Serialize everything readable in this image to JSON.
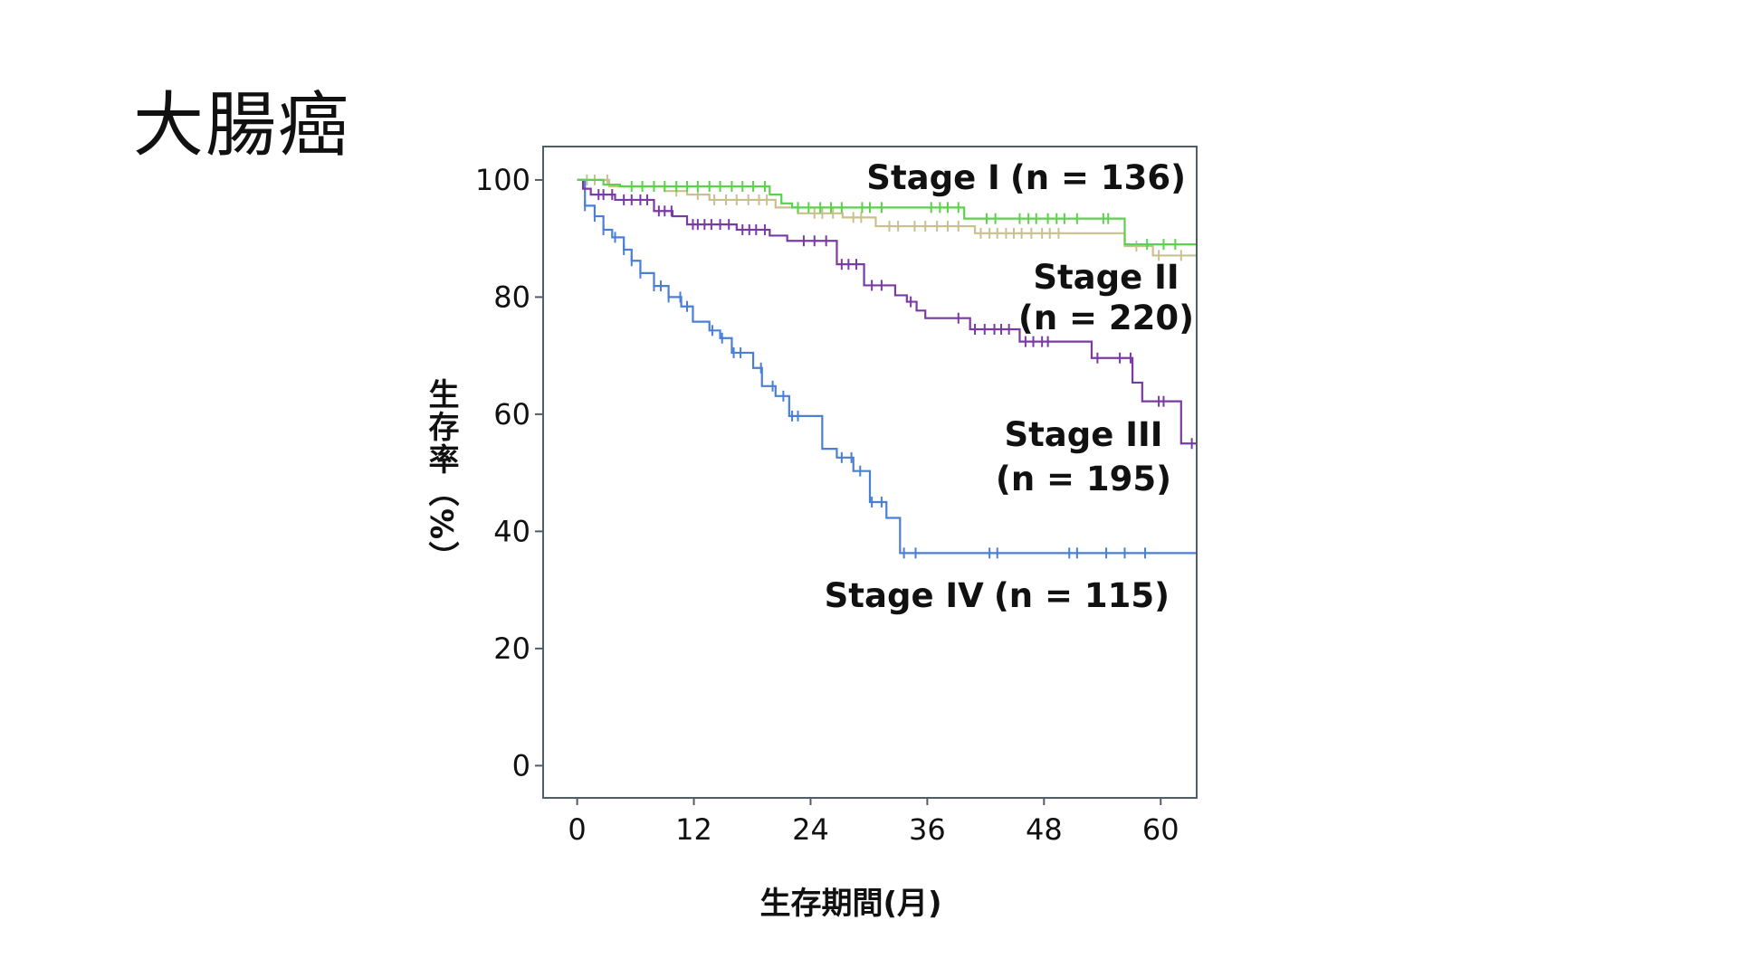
{
  "title": "大腸癌",
  "chart_data": {
    "type": "line",
    "step": true,
    "xlabel": "生存期間(月)",
    "ylabel": "生存率（%）",
    "xlim": [
      -3.5,
      63.7
    ],
    "ylim": [
      -5.5,
      105.7
    ],
    "xticks": [
      0,
      12,
      24,
      36,
      48,
      60
    ],
    "yticks": [
      0,
      20,
      40,
      60,
      80,
      100
    ],
    "grid": false,
    "series": [
      {
        "name": "Stage I",
        "n_label": "(n = 136)",
        "color": "#5cd14b",
        "steps": [
          [
            0,
            100
          ],
          [
            2.7,
            99.2
          ],
          [
            4.4,
            98.9
          ],
          [
            19.8,
            97.5
          ],
          [
            21.0,
            96.0
          ],
          [
            22.1,
            95.3
          ],
          [
            39.8,
            93.4
          ],
          [
            56.3,
            89.0
          ]
        ],
        "censored": [
          5.6,
          6.7,
          7.9,
          9.0,
          10.2,
          11.3,
          12.4,
          13.6,
          14.7,
          15.9,
          17.0,
          18.1,
          19.3,
          22.7,
          23.8,
          25.0,
          26.1,
          27.2,
          29.3,
          30.1,
          31.3,
          36.4,
          37.3,
          38.1,
          39.2,
          42.1,
          43.0,
          45.5,
          46.4,
          47.2,
          48.4,
          49.3,
          50.1,
          51.4,
          54.1,
          54.6,
          58.6,
          60.3,
          61.5
        ]
      },
      {
        "name": "Stage II",
        "n_label": "(n = 220)",
        "color": "#c8c18d",
        "steps": [
          [
            0,
            100
          ],
          [
            3.3,
            98.9
          ],
          [
            9.0,
            98.1
          ],
          [
            11.3,
            97.5
          ],
          [
            13.6,
            96.6
          ],
          [
            20.4,
            95.3
          ],
          [
            22.7,
            94.3
          ],
          [
            27.3,
            93.6
          ],
          [
            30.7,
            92.1
          ],
          [
            40.9,
            90.9
          ],
          [
            56.3,
            88.7
          ],
          [
            59.2,
            87.1
          ]
        ],
        "censored": [
          1.0,
          1.8,
          3.1,
          10.2,
          12.4,
          14.1,
          15.3,
          16.4,
          17.6,
          18.7,
          19.5,
          24.4,
          25.2,
          26.3,
          28.4,
          29.2,
          32.1,
          33.0,
          34.7,
          35.8,
          37.0,
          38.1,
          39.2,
          41.5,
          42.4,
          43.2,
          44.1,
          44.9,
          45.7,
          46.7,
          47.8,
          48.6,
          49.5,
          57.5,
          59.8,
          62.1
        ]
      },
      {
        "name": "Stage III",
        "n_label": "(n = 195)",
        "color": "#7a3aa6",
        "steps": [
          [
            0,
            100
          ],
          [
            0.6,
            98.5
          ],
          [
            1.4,
            97.5
          ],
          [
            3.9,
            96.6
          ],
          [
            7.9,
            94.7
          ],
          [
            9.8,
            93.8
          ],
          [
            11.3,
            92.4
          ],
          [
            16.4,
            91.5
          ],
          [
            19.8,
            90.5
          ],
          [
            21.6,
            89.6
          ],
          [
            26.7,
            85.6
          ],
          [
            29.5,
            82.0
          ],
          [
            32.7,
            80.3
          ],
          [
            33.9,
            79.2
          ],
          [
            34.9,
            77.7
          ],
          [
            35.8,
            76.4
          ],
          [
            40.4,
            74.5
          ],
          [
            45.5,
            72.4
          ],
          [
            52.9,
            69.6
          ],
          [
            57.1,
            65.4
          ],
          [
            58.1,
            62.2
          ],
          [
            62.1,
            55.0
          ]
        ],
        "censored": [
          2.2,
          2.7,
          3.6,
          4.8,
          5.6,
          6.5,
          7.2,
          8.4,
          9.0,
          9.7,
          11.9,
          12.4,
          13.1,
          13.8,
          14.7,
          15.6,
          17.0,
          17.7,
          18.4,
          19.3,
          23.3,
          24.4,
          25.6,
          27.2,
          27.9,
          28.7,
          30.3,
          31.3,
          34.3,
          39.2,
          40.9,
          41.9,
          42.9,
          43.6,
          44.4,
          46.1,
          46.9,
          47.8,
          48.4,
          53.5,
          55.8,
          56.9,
          59.8,
          60.3,
          63.2
        ]
      },
      {
        "name": "Stage IV",
        "n_label": "(n = 115)",
        "color": "#4a7fd6",
        "steps": [
          [
            0,
            100
          ],
          [
            0.8,
            95.6
          ],
          [
            1.8,
            93.8
          ],
          [
            2.7,
            91.5
          ],
          [
            3.6,
            90.2
          ],
          [
            4.8,
            88.1
          ],
          [
            5.6,
            86.2
          ],
          [
            6.5,
            84.1
          ],
          [
            7.9,
            81.9
          ],
          [
            9.4,
            80.0
          ],
          [
            10.7,
            78.4
          ],
          [
            11.9,
            75.8
          ],
          [
            13.6,
            74.3
          ],
          [
            14.7,
            73.0
          ],
          [
            15.9,
            70.5
          ],
          [
            18.1,
            67.9
          ],
          [
            19.0,
            64.8
          ],
          [
            20.4,
            63.1
          ],
          [
            21.8,
            59.7
          ],
          [
            25.2,
            54.1
          ],
          [
            26.7,
            52.6
          ],
          [
            28.4,
            50.3
          ],
          [
            30.1,
            45.0
          ],
          [
            31.8,
            42.3
          ],
          [
            33.2,
            36.3
          ]
        ],
        "censored": [
          0.8,
          1.8,
          2.7,
          3.9,
          4.8,
          5.6,
          6.5,
          7.9,
          8.6,
          9.4,
          10.6,
          11.3,
          13.9,
          14.9,
          16.1,
          16.8,
          18.9,
          20.1,
          21.2,
          22.1,
          22.7,
          27.2,
          28.2,
          29.1,
          30.3,
          31.3,
          33.6,
          34.8,
          42.4,
          43.2,
          50.6,
          51.4,
          54.4,
          56.3,
          58.4
        ]
      }
    ]
  }
}
